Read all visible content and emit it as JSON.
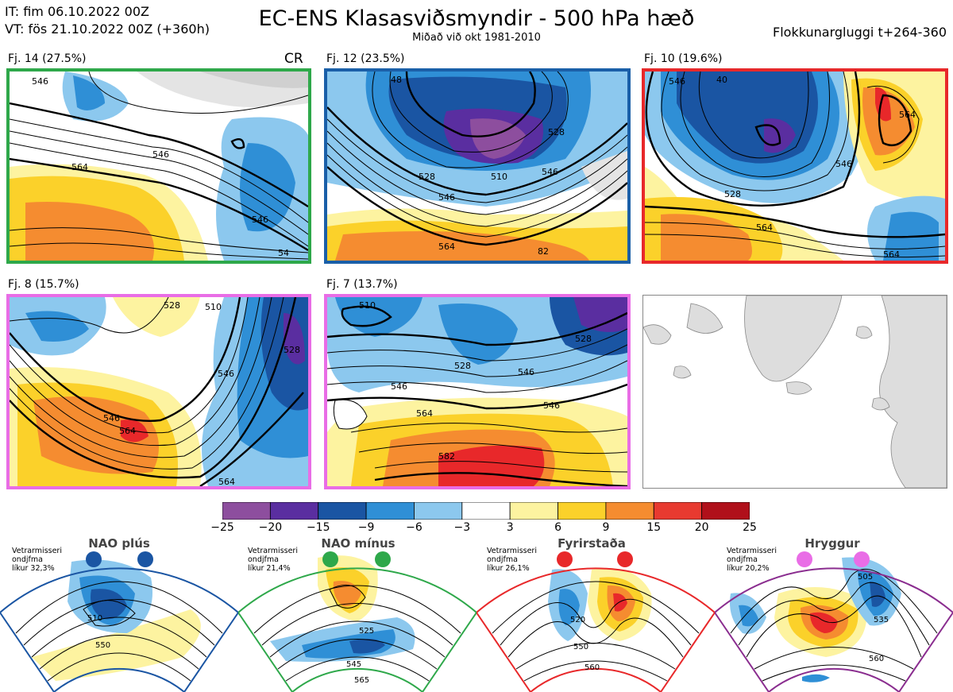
{
  "header": {
    "it": "IT: fim 06.10.2022 00Z",
    "vt": "VT: fös 21.10.2022 00Z  (+360h)",
    "title": "EC-ENS Klasasviðsmyndir - 500 hPa hæð",
    "subtitle": "Miðað við okt 1981-2010",
    "window": "Flokkunargluggi t+264-360"
  },
  "panels": [
    {
      "label": "Fj. 14 (27.5%)",
      "frame": "#2ea84a",
      "contours": [
        "546",
        "546",
        "564",
        "546",
        "54"
      ],
      "tag": "CR"
    },
    {
      "label": "Fj. 12 (23.5%)",
      "frame": "#1a5fa8",
      "contours": [
        "528",
        "510",
        "546",
        "564",
        "528",
        "546",
        "82",
        "48"
      ]
    },
    {
      "label": "Fj. 10 (19.6%)",
      "frame": "#e8282a",
      "contours": [
        "546",
        "528",
        "564",
        "564",
        "564",
        "546",
        "40"
      ]
    },
    {
      "label": "Fj. 8 (15.7%)",
      "frame": "#e96de6",
      "contours": [
        "510",
        "528",
        "546",
        "546",
        "564",
        "564",
        "528"
      ]
    },
    {
      "label": "Fj. 7 (13.7%)",
      "frame": "#e96de6",
      "contours": [
        "510",
        "528",
        "546",
        "564",
        "582",
        "546",
        "528",
        "546"
      ]
    }
  ],
  "colorbar": {
    "colors": [
      "#8d4e9e",
      "#5a2ea0",
      "#1a55a3",
      "#2f8fd6",
      "#8cc8ee",
      "#ffffff",
      "#fdf3a0",
      "#fbd12a",
      "#f58c30",
      "#e83a30",
      "#b0101a"
    ],
    "labels": [
      "−25",
      "−20",
      "−15",
      "−9",
      "−6",
      "−3",
      "3",
      "6",
      "9",
      "15",
      "20",
      "25"
    ]
  },
  "regimes": [
    {
      "title": "NAO plús",
      "note": [
        "Vetrarmisseri",
        "ondjfma",
        "líkur 32,3%"
      ],
      "color": "#1a55a3",
      "frame": "#1a55a3",
      "contours": [
        "510",
        "550"
      ]
    },
    {
      "title": "NAO mínus",
      "note": [
        "Vetrarmisseri",
        "ondjfma",
        "líkur 21,4%"
      ],
      "color": "#2ea84a",
      "frame": "#2ea84a",
      "contours": [
        "525",
        "545",
        "565"
      ]
    },
    {
      "title": "Fyrirstaða",
      "note": [
        "Vetrarmisseri",
        "ondjfma",
        "líkur 26,1%"
      ],
      "color": "#e8282a",
      "frame": "#e8282a",
      "contours": [
        "520",
        "550",
        "560"
      ]
    },
    {
      "title": "Hryggur",
      "note": [
        "Vetrarmisseri",
        "ondjfma",
        "líkur 20,2%"
      ],
      "color": "#e96de6",
      "frame": "#8a2d8f",
      "contours": [
        "505",
        "535",
        "560"
      ]
    }
  ]
}
